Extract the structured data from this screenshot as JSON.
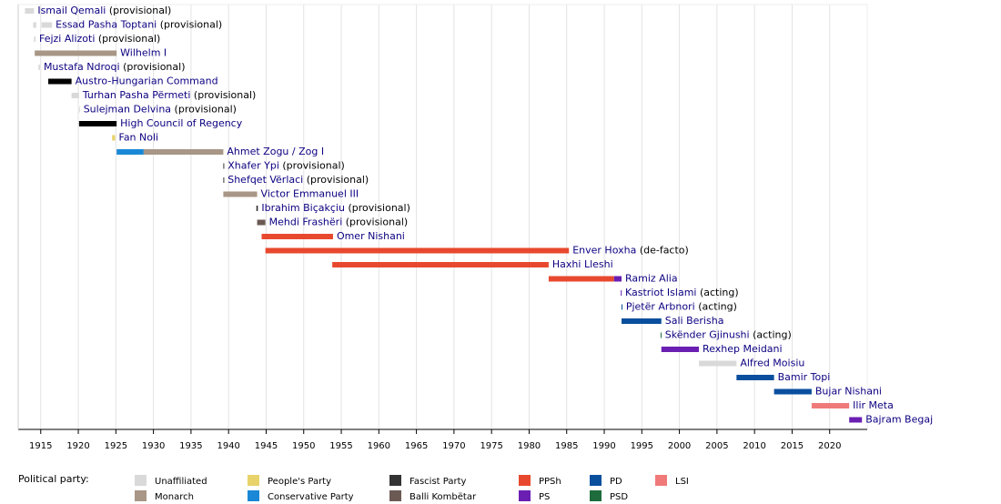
{
  "chart_data": {
    "type": "timeline",
    "xlim": [
      1912,
      2025
    ],
    "xticks": [
      1915,
      1920,
      1925,
      1930,
      1935,
      1940,
      1945,
      1950,
      1955,
      1960,
      1965,
      1970,
      1975,
      1980,
      1985,
      1990,
      1995,
      2000,
      2005,
      2010,
      2015,
      2020
    ],
    "grid": true,
    "rows": [
      {
        "name": "Ismail Qemali",
        "note": "(provisional)",
        "segments": [
          {
            "start": 1912.9,
            "end": 1914.1,
            "color": "#d9d9d9"
          }
        ]
      },
      {
        "name": "Essad Pasha Toptani",
        "note": "(provisional)",
        "segments": [
          {
            "start": 1914.0,
            "end": 1914.4,
            "color": "#d9d9d9"
          },
          {
            "start": 1915.1,
            "end": 1916.5,
            "color": "#d9d9d9"
          }
        ]
      },
      {
        "name": "Fejzi Alizoti",
        "note": "(provisional)",
        "segments": [
          {
            "start": 1914.1,
            "end": 1914.3,
            "color": "#d9d9d9"
          }
        ]
      },
      {
        "name": "Wilhelm I",
        "segments": [
          {
            "start": 1914.2,
            "end": 1925.1,
            "color": "#a89686"
          }
        ]
      },
      {
        "name": "Mustafa Ndroqi",
        "note": "(provisional)",
        "segments": [
          {
            "start": 1914.7,
            "end": 1914.9,
            "color": "#d9d9d9"
          }
        ]
      },
      {
        "name": "Austro-Hungarian Command",
        "segments": [
          {
            "start": 1916.0,
            "end": 1919.1,
            "color": "#000000"
          }
        ]
      },
      {
        "name": "Turhan Pasha Përmeti",
        "note": "(provisional)",
        "segments": [
          {
            "start": 1919.1,
            "end": 1920.1,
            "color": "#d9d9d9"
          }
        ]
      },
      {
        "name": "Sulejman Delvina",
        "note": "(provisional)",
        "segments": [
          {
            "start": 1920.1,
            "end": 1920.2,
            "color": "#d9d9d9"
          }
        ]
      },
      {
        "name": "High Council of Regency",
        "segments": [
          {
            "start": 1920.1,
            "end": 1925.1,
            "color": "#000000"
          }
        ]
      },
      {
        "name": "Fan Noli",
        "segments": [
          {
            "start": 1924.5,
            "end": 1924.9,
            "color": "#e8d36a"
          }
        ]
      },
      {
        "name": "Ahmet Zogu / Zog I",
        "segments": [
          {
            "start": 1925.1,
            "end": 1928.7,
            "color": "#1a88d6"
          },
          {
            "start": 1928.7,
            "end": 1939.3,
            "color": "#a89686"
          }
        ]
      },
      {
        "name": "Xhafer Ypi",
        "note": "(provisional)",
        "segments": [
          {
            "start": 1939.3,
            "end": 1939.4,
            "color": "#333333"
          }
        ]
      },
      {
        "name": "Shefqet Vërlaci",
        "note": "(provisional)",
        "segments": [
          {
            "start": 1939.3,
            "end": 1939.4,
            "color": "#333333"
          }
        ]
      },
      {
        "name": "Victor Emmanuel III",
        "segments": [
          {
            "start": 1939.3,
            "end": 1943.8,
            "color": "#a89686"
          }
        ]
      },
      {
        "name": "Ibrahim Biçakçiu",
        "note": "(provisional)",
        "segments": [
          {
            "start": 1943.7,
            "end": 1943.9,
            "color": "#333333"
          }
        ]
      },
      {
        "name": "Mehdi Frashëri",
        "note": "(provisional)",
        "segments": [
          {
            "start": 1943.8,
            "end": 1944.9,
            "color": "#6b5a54"
          }
        ]
      },
      {
        "name": "Omer Nishani",
        "segments": [
          {
            "start": 1944.4,
            "end": 1953.9,
            "color": "#e8492e"
          }
        ]
      },
      {
        "name": "Enver Hoxha",
        "note": "(de-facto)",
        "segments": [
          {
            "start": 1944.9,
            "end": 1985.3,
            "color": "#e8492e"
          }
        ]
      },
      {
        "name": "Haxhi Lleshi",
        "segments": [
          {
            "start": 1953.8,
            "end": 1982.6,
            "color": "#e8492e"
          }
        ]
      },
      {
        "name": "Ramiz Alia",
        "segments": [
          {
            "start": 1982.6,
            "end": 1991.3,
            "color": "#e8492e"
          },
          {
            "start": 1991.3,
            "end": 1992.3,
            "color": "#6a1fb2"
          }
        ]
      },
      {
        "name": "Kastriot Islami",
        "note": "(acting)",
        "segments": [
          {
            "start": 1992.2,
            "end": 1992.3,
            "color": "#6a1fb2"
          }
        ]
      },
      {
        "name": "Pjetër Arbnori",
        "note": "(acting)",
        "segments": [
          {
            "start": 1992.3,
            "end": 1992.4,
            "color": "#0a4f9e"
          }
        ]
      },
      {
        "name": "Sali Berisha",
        "segments": [
          {
            "start": 1992.3,
            "end": 1997.6,
            "color": "#0a4f9e"
          }
        ]
      },
      {
        "name": "Skënder Gjinushi",
        "note": "(acting)",
        "segments": [
          {
            "start": 1997.5,
            "end": 1997.6,
            "color": "#1e6b3c"
          }
        ]
      },
      {
        "name": "Rexhep Meidani",
        "segments": [
          {
            "start": 1997.6,
            "end": 2002.6,
            "color": "#6a1fb2"
          }
        ]
      },
      {
        "name": "Alfred Moisiu",
        "segments": [
          {
            "start": 2002.6,
            "end": 2007.6,
            "color": "#d9d9d9"
          }
        ]
      },
      {
        "name": "Bamir Topi",
        "segments": [
          {
            "start": 2007.6,
            "end": 2012.6,
            "color": "#0a4f9e"
          }
        ]
      },
      {
        "name": "Bujar Nishani",
        "segments": [
          {
            "start": 2012.6,
            "end": 2017.6,
            "color": "#0a4f9e"
          }
        ]
      },
      {
        "name": "Ilir Meta",
        "segments": [
          {
            "start": 2017.6,
            "end": 2022.6,
            "color": "#f07a7a"
          }
        ]
      },
      {
        "name": "Bajram Begaj",
        "segments": [
          {
            "start": 2022.6,
            "end": 2024.3,
            "color": "#6a1fb2"
          }
        ]
      }
    ],
    "legend_title": "Political party:",
    "parties": [
      {
        "name": "Unaffiliated",
        "color": "#d9d9d9"
      },
      {
        "name": "Monarch",
        "color": "#a89686"
      },
      {
        "name": "People's Party",
        "color": "#e8d36a"
      },
      {
        "name": "Conservative Party",
        "color": "#1a88d6"
      },
      {
        "name": "Fascist Party",
        "color": "#333333"
      },
      {
        "name": "Balli Kombëtar",
        "color": "#6b5a54"
      },
      {
        "name": "PPSh",
        "color": "#e8492e"
      },
      {
        "name": "PS",
        "color": "#6a1fb2"
      },
      {
        "name": "PD",
        "color": "#0a4f9e"
      },
      {
        "name": "PSD",
        "color": "#1e6b3c"
      },
      {
        "name": "LSI",
        "color": "#f07a7a"
      }
    ]
  }
}
